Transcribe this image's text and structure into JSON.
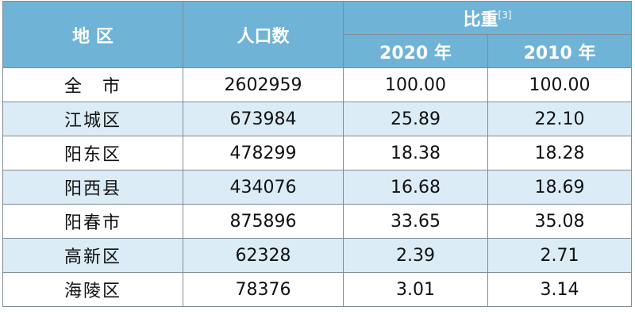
{
  "table": {
    "header": {
      "region": "地 区",
      "population": "人口数",
      "share": "比重",
      "share_note": "[3]",
      "year_2020": "2020 年",
      "year_2010": "2010 年"
    },
    "rows": [
      [
        "全　市",
        "2602959",
        "100.00",
        "100.00"
      ],
      [
        "江城区",
        "673984",
        "25.89",
        "22.10"
      ],
      [
        "阳东区",
        "478299",
        "18.38",
        "18.28"
      ],
      [
        "阳西县",
        "434076",
        "16.68",
        "18.69"
      ],
      [
        "阳春市",
        "875896",
        "33.65",
        "35.08"
      ],
      [
        "高新区",
        "62328",
        "2.39",
        "2.71"
      ],
      [
        "海陵区",
        "78376",
        "3.01",
        "3.14"
      ]
    ]
  }
}
